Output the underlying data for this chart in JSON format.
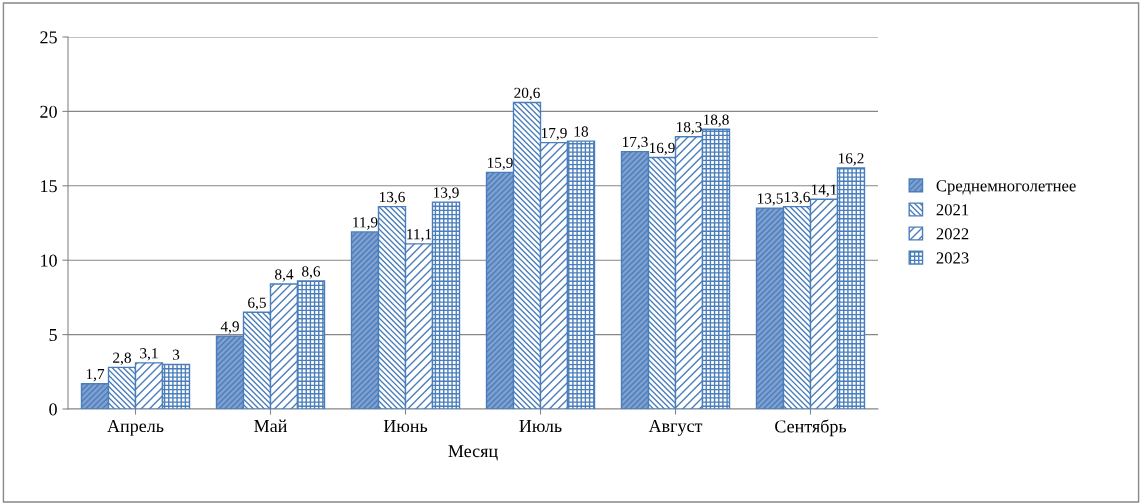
{
  "chart_data": {
    "type": "bar",
    "xlabel": "Месяц",
    "categories": [
      "Апрель",
      "Май",
      "Июнь",
      "Июль",
      "Август",
      "Сентябрь"
    ],
    "series": [
      {
        "name": "Среднемноголетнее",
        "color": "#4a7ebb",
        "values": [
          1.7,
          4.9,
          11.9,
          15.9,
          17.3,
          13.5
        ],
        "value_labels": [
          "1,7",
          "4,9",
          "11,9",
          "15,9",
          "17,3",
          "13,5"
        ]
      },
      {
        "name": "2021",
        "color": "#4a7ebb",
        "values": [
          2.8,
          6.5,
          13.6,
          20.6,
          16.9,
          13.6
        ],
        "value_labels": [
          "2,8",
          "6,5",
          "13,6",
          "20,6",
          "16,9",
          "13,6"
        ]
      },
      {
        "name": "2022",
        "color": "#4a7ebb",
        "values": [
          3.1,
          8.4,
          11.1,
          17.9,
          18.3,
          14.1
        ],
        "value_labels": [
          "3,1",
          "8,4",
          "11,1",
          "17,9",
          "18,3",
          "14,1"
        ]
      },
      {
        "name": "2023",
        "color": "#4a7ebb",
        "values": [
          3,
          8.6,
          13.9,
          18,
          18.8,
          16.2
        ],
        "value_labels": [
          "3",
          "8,6",
          "13,9",
          "18",
          "18,8",
          "16,2"
        ]
      }
    ],
    "ylim": [
      0,
      25
    ],
    "yticks": [
      0,
      5,
      10,
      15,
      20,
      25
    ],
    "grid": "y",
    "legend": "right"
  }
}
